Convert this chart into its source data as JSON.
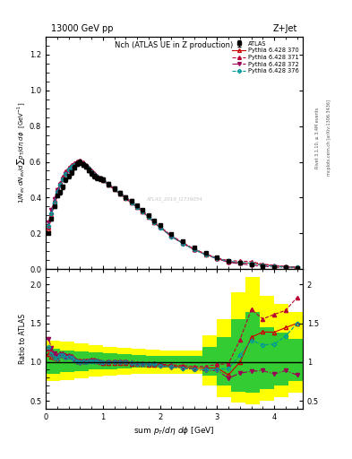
{
  "title_top": "13000 GeV pp",
  "title_right": "Z+Jet",
  "plot_title": "Nch (ATLAS UE in Z production)",
  "xlabel": "sum p_{T}/d\\eta d\\phi [GeV]",
  "ylabel_main": "1/N_{ev} dN_{ev}/dsum p_{T}/d\\eta d\\phi  [GeV^{-1}]",
  "ylabel_ratio": "Ratio to ATLAS",
  "right_label1": "Rivet 3.1.10, ≥ 3.4M events",
  "right_label2": "mcplots.cern.ch [arXiv:1306.3436]",
  "watermark": "ATLAS_2019_I1739054",
  "legend_entries": [
    "ATLAS",
    "Pythia 6.428 370",
    "Pythia 6.428 371",
    "Pythia 6.428 372",
    "Pythia 6.428 376"
  ],
  "atlas_x": [
    0.05,
    0.1,
    0.15,
    0.2,
    0.25,
    0.3,
    0.35,
    0.4,
    0.45,
    0.5,
    0.55,
    0.6,
    0.65,
    0.7,
    0.75,
    0.8,
    0.85,
    0.9,
    0.95,
    1.0,
    1.1,
    1.2,
    1.3,
    1.4,
    1.5,
    1.6,
    1.7,
    1.8,
    1.9,
    2.0,
    2.2,
    2.4,
    2.6,
    2.8,
    3.0,
    3.2,
    3.4,
    3.6,
    3.8,
    4.0,
    4.2,
    4.4
  ],
  "atlas_y": [
    0.2,
    0.28,
    0.35,
    0.41,
    0.43,
    0.46,
    0.5,
    0.52,
    0.54,
    0.57,
    0.59,
    0.6,
    0.585,
    0.575,
    0.555,
    0.535,
    0.52,
    0.51,
    0.505,
    0.5,
    0.475,
    0.45,
    0.425,
    0.4,
    0.38,
    0.355,
    0.33,
    0.3,
    0.27,
    0.245,
    0.195,
    0.155,
    0.12,
    0.09,
    0.065,
    0.048,
    0.035,
    0.025,
    0.018,
    0.013,
    0.009,
    0.006
  ],
  "p370_x": [
    0.05,
    0.1,
    0.15,
    0.2,
    0.25,
    0.3,
    0.35,
    0.4,
    0.45,
    0.5,
    0.55,
    0.6,
    0.65,
    0.7,
    0.75,
    0.8,
    0.85,
    0.9,
    0.95,
    1.0,
    1.1,
    1.2,
    1.3,
    1.4,
    1.5,
    1.6,
    1.7,
    1.8,
    1.9,
    2.0,
    2.2,
    2.4,
    2.6,
    2.8,
    3.0,
    3.2,
    3.4,
    3.6,
    3.8,
    4.0,
    4.2,
    4.4
  ],
  "p370_y": [
    0.22,
    0.3,
    0.37,
    0.43,
    0.47,
    0.5,
    0.535,
    0.56,
    0.575,
    0.59,
    0.6,
    0.605,
    0.595,
    0.58,
    0.565,
    0.545,
    0.53,
    0.515,
    0.505,
    0.495,
    0.47,
    0.445,
    0.42,
    0.395,
    0.37,
    0.345,
    0.32,
    0.29,
    0.26,
    0.235,
    0.185,
    0.145,
    0.11,
    0.083,
    0.06,
    0.04,
    0.035,
    0.033,
    0.025,
    0.018,
    0.013,
    0.009
  ],
  "p371_x": [
    0.05,
    0.1,
    0.15,
    0.2,
    0.25,
    0.3,
    0.35,
    0.4,
    0.45,
    0.5,
    0.55,
    0.6,
    0.65,
    0.7,
    0.75,
    0.8,
    0.85,
    0.9,
    0.95,
    1.0,
    1.1,
    1.2,
    1.3,
    1.4,
    1.5,
    1.6,
    1.7,
    1.8,
    1.9,
    2.0,
    2.2,
    2.4,
    2.6,
    2.8,
    3.0,
    3.2,
    3.4,
    3.6,
    3.8,
    4.0,
    4.2,
    4.4
  ],
  "p371_y": [
    0.235,
    0.315,
    0.385,
    0.445,
    0.48,
    0.515,
    0.545,
    0.57,
    0.585,
    0.595,
    0.605,
    0.61,
    0.6,
    0.585,
    0.57,
    0.55,
    0.535,
    0.52,
    0.51,
    0.5,
    0.478,
    0.452,
    0.428,
    0.402,
    0.378,
    0.352,
    0.326,
    0.296,
    0.265,
    0.238,
    0.188,
    0.148,
    0.113,
    0.085,
    0.063,
    0.047,
    0.045,
    0.042,
    0.028,
    0.021,
    0.015,
    0.011
  ],
  "p372_x": [
    0.05,
    0.1,
    0.15,
    0.2,
    0.25,
    0.3,
    0.35,
    0.4,
    0.45,
    0.5,
    0.55,
    0.6,
    0.65,
    0.7,
    0.75,
    0.8,
    0.85,
    0.9,
    0.95,
    1.0,
    1.1,
    1.2,
    1.3,
    1.4,
    1.5,
    1.6,
    1.7,
    1.8,
    1.9,
    2.0,
    2.2,
    2.4,
    2.6,
    2.8,
    3.0,
    3.2,
    3.4,
    3.6,
    3.8,
    4.0,
    4.2,
    4.4
  ],
  "p372_y": [
    0.26,
    0.33,
    0.39,
    0.44,
    0.47,
    0.5,
    0.53,
    0.555,
    0.57,
    0.58,
    0.59,
    0.593,
    0.585,
    0.572,
    0.558,
    0.54,
    0.527,
    0.514,
    0.504,
    0.495,
    0.472,
    0.447,
    0.422,
    0.397,
    0.372,
    0.347,
    0.32,
    0.29,
    0.26,
    0.232,
    0.182,
    0.143,
    0.108,
    0.08,
    0.058,
    0.038,
    0.03,
    0.022,
    0.016,
    0.011,
    0.008,
    0.005
  ],
  "p376_x": [
    0.05,
    0.1,
    0.15,
    0.2,
    0.25,
    0.3,
    0.35,
    0.4,
    0.45,
    0.5,
    0.55,
    0.6,
    0.65,
    0.7,
    0.75,
    0.8,
    0.85,
    0.9,
    0.95,
    1.0,
    1.1,
    1.2,
    1.3,
    1.4,
    1.5,
    1.6,
    1.7,
    1.8,
    1.9,
    2.0,
    2.2,
    2.4,
    2.6,
    2.8,
    3.0,
    3.2,
    3.4,
    3.6,
    3.8,
    4.0,
    4.2,
    4.4
  ],
  "p376_y": [
    0.24,
    0.31,
    0.37,
    0.43,
    0.47,
    0.5,
    0.53,
    0.557,
    0.573,
    0.585,
    0.595,
    0.598,
    0.59,
    0.577,
    0.562,
    0.542,
    0.528,
    0.515,
    0.505,
    0.497,
    0.474,
    0.449,
    0.424,
    0.399,
    0.374,
    0.348,
    0.322,
    0.292,
    0.262,
    0.234,
    0.183,
    0.143,
    0.109,
    0.081,
    0.059,
    0.044,
    0.038,
    0.032,
    0.022,
    0.016,
    0.012,
    0.009
  ],
  "color_atlas": "#000000",
  "color_370": "#cc0000",
  "color_371": "#bb0033",
  "color_372": "#990055",
  "color_376": "#009999",
  "xlim": [
    0.0,
    4.5
  ],
  "ylim_main": [
    0.0,
    1.3
  ],
  "ylim_ratio": [
    0.4,
    2.2
  ],
  "yellow_band_x": [
    0.0,
    0.25,
    0.5,
    0.75,
    1.0,
    1.25,
    1.5,
    1.75,
    2.0,
    2.25,
    2.5,
    2.75,
    3.0,
    3.25,
    3.5,
    3.75,
    4.0,
    4.25,
    4.5
  ],
  "yellow_lo": [
    0.75,
    0.77,
    0.79,
    0.81,
    0.83,
    0.84,
    0.85,
    0.85,
    0.85,
    0.85,
    0.85,
    0.7,
    0.55,
    0.48,
    0.45,
    0.5,
    0.55,
    0.6,
    0.65
  ],
  "yellow_hi": [
    1.28,
    1.26,
    1.24,
    1.22,
    1.2,
    1.18,
    1.17,
    1.16,
    1.15,
    1.15,
    1.15,
    1.35,
    1.55,
    1.9,
    2.1,
    1.85,
    1.75,
    1.65,
    1.55
  ],
  "green_band_x": [
    0.0,
    0.25,
    0.5,
    0.75,
    1.0,
    1.25,
    1.5,
    1.75,
    2.0,
    2.25,
    2.5,
    2.75,
    3.0,
    3.25,
    3.5,
    3.75,
    4.0,
    4.25,
    4.5
  ],
  "green_lo": [
    0.85,
    0.87,
    0.88,
    0.9,
    0.91,
    0.92,
    0.93,
    0.93,
    0.93,
    0.93,
    0.93,
    0.82,
    0.7,
    0.62,
    0.6,
    0.65,
    0.7,
    0.75,
    0.8
  ],
  "green_hi": [
    1.17,
    1.15,
    1.14,
    1.12,
    1.11,
    1.1,
    1.09,
    1.08,
    1.08,
    1.08,
    1.08,
    1.2,
    1.32,
    1.55,
    1.65,
    1.45,
    1.38,
    1.3,
    1.22
  ]
}
